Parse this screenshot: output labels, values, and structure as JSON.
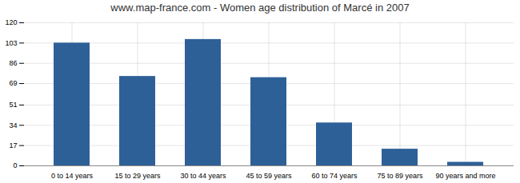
{
  "chart_data": {
    "type": "bar",
    "title": "www.map-france.com - Women age distribution of Marcé in 2007",
    "categories": [
      "0 to 14 years",
      "15 to 29 years",
      "30 to 44 years",
      "45 to 59 years",
      "60 to 74 years",
      "75 to 89 years",
      "90 years and more"
    ],
    "values": [
      103,
      75,
      106,
      74,
      36,
      14,
      3
    ],
    "color": "#2e6098",
    "ylim": [
      0,
      120
    ],
    "yticks": [
      0,
      17,
      34,
      51,
      69,
      86,
      103,
      120
    ],
    "grid": true
  }
}
